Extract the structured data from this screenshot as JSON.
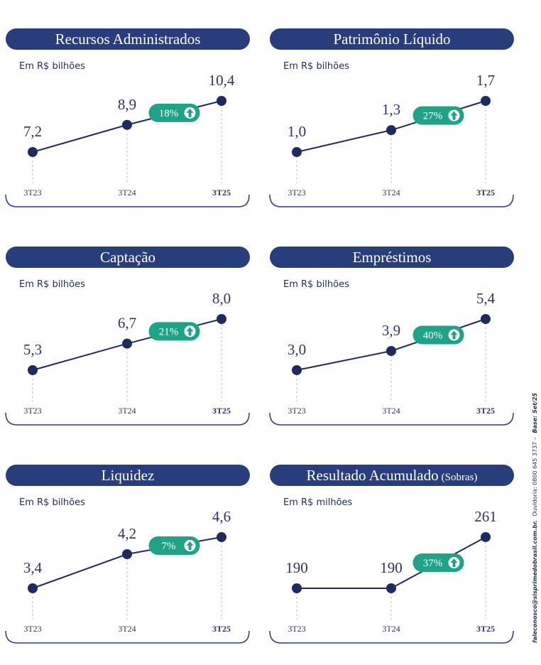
{
  "chart_data": [
    {
      "type": "line",
      "title": "Recursos Administrados",
      "subtitle": "Em R$ bilhões",
      "categories": [
        "3T23",
        "3T24",
        "3T25"
      ],
      "values": [
        7.2,
        8.9,
        10.4
      ],
      "value_labels": [
        "7,2",
        "8,9",
        "10,4"
      ],
      "annotation": "18%",
      "color": "#1f2b5c"
    },
    {
      "type": "line",
      "title": "Patrimônio Líquido",
      "subtitle": "Em R$ bilhões",
      "categories": [
        "3T23",
        "3T24",
        "3T25"
      ],
      "values": [
        1.0,
        1.3,
        1.7
      ],
      "value_labels": [
        "1,0",
        "1,3",
        "1,7"
      ],
      "annotation": "27%",
      "color": "#1f2b5c"
    },
    {
      "type": "line",
      "title": "Captação",
      "subtitle": "Em R$ bilhões",
      "categories": [
        "3T23",
        "3T24",
        "3T25"
      ],
      "values": [
        5.3,
        6.7,
        8.0
      ],
      "value_labels": [
        "5,3",
        "6,7",
        "8,0"
      ],
      "annotation": "21%",
      "color": "#1f2b5c"
    },
    {
      "type": "line",
      "title": "Empréstimos",
      "subtitle": "Em R$ bilhões",
      "categories": [
        "3T23",
        "3T24",
        "3T25"
      ],
      "values": [
        3.0,
        3.9,
        5.4
      ],
      "value_labels": [
        "3,0",
        "3,9",
        "5,4"
      ],
      "annotation": "40%",
      "color": "#1f2b5c"
    },
    {
      "type": "line",
      "title": "Liquidez",
      "subtitle": "Em R$ bilhões",
      "categories": [
        "3T23",
        "3T24",
        "3T25"
      ],
      "values": [
        3.4,
        4.2,
        4.6
      ],
      "value_labels": [
        "3,4",
        "4,2",
        "4,6"
      ],
      "annotation": "7%",
      "color": "#1f2b5c"
    },
    {
      "type": "line",
      "title": "Resultado Acumulado",
      "title_suffix": "(Sobras)",
      "subtitle": "Em R$ milhões",
      "categories": [
        "3T23",
        "3T24",
        "3T25"
      ],
      "values": [
        190,
        190,
        261
      ],
      "annotation": "37%",
      "color": "#1f2b5c"
    }
  ],
  "footer": [
    "faleconosco@sisprimedobrasil.com.br.",
    "Ouvidoria: 0800 645 3737 –",
    "Base: Set/25"
  ]
}
